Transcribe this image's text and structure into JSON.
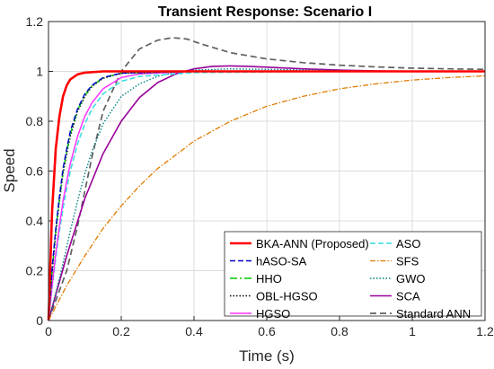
{
  "chart_data": {
    "type": "line",
    "title": "Transient Response: Scenario I",
    "xlabel": "Time (s)",
    "ylabel": "Speed",
    "xlim": [
      0,
      1.2
    ],
    "ylim": [
      0,
      1.2
    ],
    "xticks": [
      0,
      0.2,
      0.4,
      0.6,
      0.8,
      1,
      1.2
    ],
    "xtick_labels": [
      "0",
      "0.2",
      "0.4",
      "0.6",
      "0.8",
      "1",
      "1.2"
    ],
    "yticks": [
      0,
      0.2,
      0.4,
      0.6,
      0.8,
      1,
      1.2
    ],
    "ytick_labels": [
      "0",
      "0.2",
      "0.4",
      "0.6",
      "0.8",
      "1",
      "1.2"
    ],
    "grid": true,
    "legend_position": "bottom-right",
    "legend_columns": 2,
    "series": [
      {
        "name": "BKA-ANN (Proposed)",
        "color": "#ff0000",
        "dash": "solid",
        "width": 2.6,
        "x": [
          0,
          0.01,
          0.02,
          0.03,
          0.04,
          0.05,
          0.06,
          0.08,
          0.1,
          0.15,
          0.2,
          0.4,
          0.6,
          0.8,
          1.0,
          1.2
        ],
        "y": [
          0,
          0.44,
          0.69,
          0.82,
          0.9,
          0.944,
          0.968,
          0.988,
          0.995,
          1.0,
          1.0,
          1.0,
          1.0,
          1.0,
          1.0,
          1.0
        ]
      },
      {
        "name": "hASO-SA",
        "color": "#0000cc",
        "dash": "6,3",
        "width": 1.4,
        "x": [
          0,
          0.01,
          0.02,
          0.03,
          0.04,
          0.05,
          0.06,
          0.08,
          0.1,
          0.12,
          0.15,
          0.2,
          0.4,
          0.6,
          0.8,
          1.0,
          1.2
        ],
        "y": [
          0,
          0.21,
          0.37,
          0.5,
          0.61,
          0.69,
          0.76,
          0.85,
          0.91,
          0.945,
          0.975,
          0.993,
          1.0,
          1.0,
          1.0,
          1.0,
          1.0
        ]
      },
      {
        "name": "HHO",
        "color": "#00cc00",
        "dash": "8,3,2,3",
        "width": 1.4,
        "x": [
          0,
          0.01,
          0.02,
          0.03,
          0.04,
          0.05,
          0.06,
          0.08,
          0.1,
          0.12,
          0.15,
          0.2,
          0.4,
          0.6,
          0.8,
          1.0,
          1.2
        ],
        "y": [
          0,
          0.2,
          0.36,
          0.49,
          0.6,
          0.68,
          0.75,
          0.845,
          0.905,
          0.943,
          0.974,
          0.993,
          1.0,
          1.0,
          1.0,
          1.0,
          1.0
        ]
      },
      {
        "name": "OBL-HGSO",
        "color": "#000000",
        "dash": "1.5,2",
        "width": 1.5,
        "x": [
          0,
          0.01,
          0.02,
          0.03,
          0.04,
          0.05,
          0.06,
          0.08,
          0.1,
          0.12,
          0.15,
          0.2,
          0.4,
          0.6,
          0.8,
          1.0,
          1.2
        ],
        "y": [
          0,
          0.19,
          0.35,
          0.48,
          0.59,
          0.67,
          0.74,
          0.84,
          0.9,
          0.94,
          0.972,
          0.992,
          1.0,
          1.0,
          1.0,
          1.0,
          1.0
        ]
      },
      {
        "name": "HGSO",
        "color": "#ff33ff",
        "dash": "solid",
        "width": 1.5,
        "x": [
          0,
          0.01,
          0.02,
          0.03,
          0.04,
          0.05,
          0.06,
          0.08,
          0.1,
          0.12,
          0.15,
          0.2,
          0.25,
          0.4,
          0.6,
          0.8,
          1.0,
          1.2
        ],
        "y": [
          0,
          0.14,
          0.27,
          0.38,
          0.48,
          0.56,
          0.63,
          0.74,
          0.82,
          0.875,
          0.93,
          0.975,
          0.99,
          1.0,
          1.0,
          1.0,
          1.0,
          1.0
        ]
      },
      {
        "name": "ASO",
        "color": "#33dddd",
        "dash": "6,3",
        "width": 1.5,
        "x": [
          0,
          0.01,
          0.02,
          0.03,
          0.04,
          0.05,
          0.06,
          0.08,
          0.1,
          0.12,
          0.15,
          0.2,
          0.25,
          0.4,
          0.6,
          0.8,
          1.0,
          1.2
        ],
        "y": [
          0,
          0.13,
          0.25,
          0.36,
          0.45,
          0.53,
          0.6,
          0.71,
          0.79,
          0.85,
          0.91,
          0.96,
          0.98,
          0.995,
          0.998,
          1.0,
          1.0,
          1.0
        ]
      },
      {
        "name": "SFS",
        "color": "#e07b00",
        "dash": "6,2,1.5,2",
        "width": 1.3,
        "x": [
          0,
          0.05,
          0.1,
          0.15,
          0.2,
          0.25,
          0.3,
          0.35,
          0.4,
          0.45,
          0.5,
          0.6,
          0.7,
          0.8,
          0.9,
          1.0,
          1.1,
          1.2
        ],
        "y": [
          0,
          0.14,
          0.26,
          0.37,
          0.46,
          0.54,
          0.61,
          0.665,
          0.72,
          0.76,
          0.8,
          0.86,
          0.9,
          0.93,
          0.95,
          0.965,
          0.975,
          0.982
        ]
      },
      {
        "name": "GWO",
        "color": "#008080",
        "dash": "1.5,2",
        "width": 1.4,
        "x": [
          0,
          0.02,
          0.04,
          0.06,
          0.08,
          0.1,
          0.12,
          0.15,
          0.2,
          0.25,
          0.3,
          0.35,
          0.4,
          0.5,
          0.6,
          0.8,
          1.0,
          1.2
        ],
        "y": [
          0,
          0.11,
          0.23,
          0.36,
          0.48,
          0.59,
          0.68,
          0.79,
          0.9,
          0.95,
          0.98,
          0.997,
          1.005,
          1.01,
          1.008,
          1.003,
          1.0,
          1.0
        ]
      },
      {
        "name": "SCA",
        "color": "#990099",
        "dash": "solid",
        "width": 1.6,
        "x": [
          0,
          0.05,
          0.1,
          0.15,
          0.2,
          0.25,
          0.3,
          0.35,
          0.4,
          0.45,
          0.5,
          0.55,
          0.6,
          0.7,
          0.8,
          0.9,
          1.0,
          1.1,
          1.2
        ],
        "y": [
          0,
          0.26,
          0.49,
          0.67,
          0.8,
          0.895,
          0.955,
          0.99,
          1.01,
          1.02,
          1.022,
          1.02,
          1.017,
          1.01,
          1.005,
          1.002,
          1.0,
          1.0,
          1.0
        ]
      },
      {
        "name": "Standard ANN",
        "color": "#606060",
        "dash": "7,4",
        "width": 1.7,
        "x": [
          0,
          0.05,
          0.08,
          0.1,
          0.12,
          0.15,
          0.2,
          0.25,
          0.3,
          0.34,
          0.38,
          0.42,
          0.5,
          0.6,
          0.7,
          0.8,
          0.9,
          1.0,
          1.1,
          1.2
        ],
        "y": [
          0,
          0.2,
          0.38,
          0.52,
          0.66,
          0.84,
          1.0,
          1.09,
          1.125,
          1.135,
          1.13,
          1.11,
          1.075,
          1.05,
          1.035,
          1.025,
          1.018,
          1.013,
          1.01,
          1.008
        ]
      }
    ]
  }
}
